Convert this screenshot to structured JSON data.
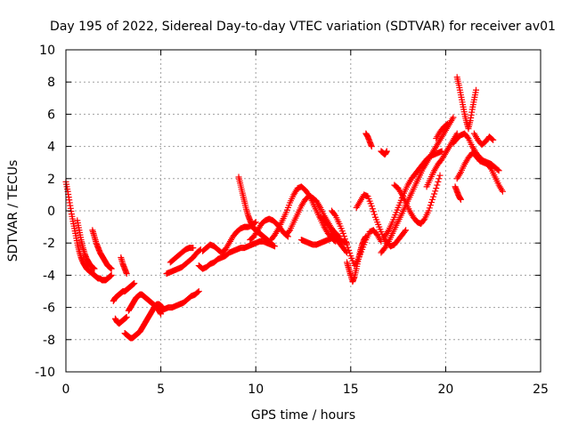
{
  "chart_data": {
    "type": "scatter",
    "title": "Day 195 of 2022, Sidereal Day-to-day VTEC variation (SDTVAR) for receiver av01",
    "xlabel": "GPS time / hours",
    "ylabel": "SDTVAR / TECUs",
    "xlim": [
      0,
      25
    ],
    "ylim": [
      -10,
      10
    ],
    "xticks": [
      0,
      5,
      10,
      15,
      20,
      25
    ],
    "yticks": [
      -10,
      -8,
      -6,
      -4,
      -2,
      0,
      2,
      4,
      6,
      8,
      10
    ],
    "grid": true,
    "marker": "+",
    "color": "#ff0000",
    "series": [
      {
        "name": "seg1",
        "x": [
          0.0,
          0.1,
          0.2,
          0.3,
          0.4,
          0.5,
          0.6,
          0.7,
          0.8,
          0.9,
          1.0,
          1.1,
          1.2,
          1.3,
          1.4,
          1.5,
          1.6,
          1.7,
          1.8,
          1.9,
          2.0,
          2.1,
          2.2,
          2.3,
          2.4
        ],
        "y": [
          1.8,
          1.2,
          0.5,
          -0.2,
          -0.8,
          -1.4,
          -2.0,
          -2.5,
          -2.9,
          -3.2,
          -3.4,
          -3.6,
          -3.7,
          -3.8,
          -3.9,
          -4.0,
          -4.1,
          -4.2,
          -4.2,
          -4.3,
          -4.3,
          -4.3,
          -4.2,
          -4.1,
          -4.0
        ]
      },
      {
        "name": "seg2",
        "x": [
          0.6,
          0.7,
          0.8,
          0.9,
          1.0,
          1.1,
          1.2,
          1.3,
          1.4,
          1.5
        ],
        "y": [
          -0.6,
          -1.2,
          -1.8,
          -2.3,
          -2.7,
          -3.0,
          -3.2,
          -3.4,
          -3.5,
          -3.6
        ]
      },
      {
        "name": "seg3",
        "x": [
          1.4,
          1.5,
          1.6,
          1.7,
          1.8,
          1.9,
          2.0,
          2.1,
          2.2,
          2.3,
          2.4
        ],
        "y": [
          -1.2,
          -1.6,
          -2.0,
          -2.3,
          -2.6,
          -2.8,
          -3.0,
          -3.2,
          -3.4,
          -3.5,
          -3.6
        ]
      },
      {
        "name": "seg4",
        "x": [
          2.6,
          2.7,
          2.8,
          2.9,
          3.0,
          3.1,
          3.2
        ],
        "y": [
          -6.7,
          -6.9,
          -7.0,
          -6.9,
          -6.8,
          -6.7,
          -6.6
        ]
      },
      {
        "name": "seg5",
        "x": [
          2.9,
          3.0,
          3.1,
          3.2
        ],
        "y": [
          -2.9,
          -3.3,
          -3.6,
          -3.9
        ]
      },
      {
        "name": "seg6",
        "x": [
          3.1,
          3.2,
          3.3,
          3.4,
          3.5,
          3.6,
          3.7,
          3.8,
          3.9,
          4.0,
          4.1,
          4.2,
          4.3,
          4.4,
          4.5,
          4.6,
          4.7,
          4.8,
          4.9,
          5.0,
          5.1
        ],
        "y": [
          -7.6,
          -7.7,
          -7.8,
          -7.9,
          -7.9,
          -7.8,
          -7.7,
          -7.6,
          -7.5,
          -7.3,
          -7.1,
          -6.9,
          -6.7,
          -6.5,
          -6.3,
          -6.1,
          -5.9,
          -5.8,
          -5.8,
          -5.9,
          -6.0
        ]
      },
      {
        "name": "seg7",
        "x": [
          2.5,
          2.6,
          2.7,
          2.8,
          2.9,
          3.0,
          3.1,
          3.2,
          3.3,
          3.4,
          3.5,
          3.6
        ],
        "y": [
          -5.6,
          -5.4,
          -5.3,
          -5.2,
          -5.1,
          -5.0,
          -5.0,
          -4.9,
          -4.8,
          -4.7,
          -4.6,
          -4.5
        ]
      },
      {
        "name": "seg8",
        "x": [
          3.3,
          3.4,
          3.5,
          3.6,
          3.7,
          3.8,
          3.9,
          4.0,
          4.1,
          4.2,
          4.3,
          4.4,
          4.5,
          4.6,
          4.7,
          4.8,
          4.9,
          5.0
        ],
        "y": [
          -6.2,
          -6.0,
          -5.8,
          -5.6,
          -5.4,
          -5.3,
          -5.2,
          -5.2,
          -5.3,
          -5.4,
          -5.5,
          -5.6,
          -5.7,
          -5.8,
          -5.9,
          -6.0,
          -6.2,
          -6.4
        ]
      },
      {
        "name": "seg9",
        "x": [
          5.0,
          5.2,
          5.4,
          5.6,
          5.8,
          6.0,
          6.2,
          6.4,
          6.6,
          6.8,
          7.0
        ],
        "y": [
          -6.2,
          -6.1,
          -6.0,
          -6.0,
          -5.9,
          -5.8,
          -5.7,
          -5.5,
          -5.3,
          -5.2,
          -5.0
        ]
      },
      {
        "name": "seg10",
        "x": [
          5.3,
          5.5,
          5.7,
          5.9,
          6.1,
          6.3,
          6.5,
          6.7,
          6.9,
          7.1
        ],
        "y": [
          -3.9,
          -3.8,
          -3.7,
          -3.6,
          -3.5,
          -3.3,
          -3.1,
          -2.9,
          -2.6,
          -2.4
        ]
      },
      {
        "name": "seg11",
        "x": [
          5.5,
          5.7,
          5.9,
          6.1,
          6.3,
          6.5,
          6.7
        ],
        "y": [
          -3.2,
          -3.0,
          -2.8,
          -2.6,
          -2.4,
          -2.3,
          -2.3
        ]
      },
      {
        "name": "seg12",
        "x": [
          7.0,
          7.2,
          7.4,
          7.6,
          7.8,
          8.0,
          8.2,
          8.4,
          8.6,
          8.8,
          9.0,
          9.2,
          9.4,
          9.6,
          9.8,
          10.0,
          10.2,
          10.4,
          10.6,
          10.8,
          11.0
        ],
        "y": [
          -3.4,
          -3.6,
          -3.5,
          -3.3,
          -3.2,
          -3.0,
          -2.9,
          -2.8,
          -2.6,
          -2.5,
          -2.4,
          -2.3,
          -2.3,
          -2.2,
          -2.1,
          -2.0,
          -1.9,
          -1.9,
          -2.0,
          -2.1,
          -2.2
        ]
      },
      {
        "name": "seg13",
        "x": [
          7.2,
          7.4,
          7.6,
          7.8,
          8.0,
          8.2,
          8.4,
          8.6,
          8.8,
          9.0,
          9.2,
          9.4,
          9.6,
          9.8,
          10.0
        ],
        "y": [
          -2.5,
          -2.3,
          -2.1,
          -2.2,
          -2.4,
          -2.6,
          -2.4,
          -2.0,
          -1.6,
          -1.3,
          -1.1,
          -1.0,
          -1.0,
          -0.9,
          -0.7
        ]
      },
      {
        "name": "seg14",
        "x": [
          9.1,
          9.2,
          9.3,
          9.4,
          9.5,
          9.6,
          9.7,
          9.8,
          9.9,
          10.0,
          10.1,
          10.2,
          10.3,
          10.4,
          10.5,
          10.6,
          10.7,
          10.8
        ],
        "y": [
          2.1,
          1.6,
          1.1,
          0.6,
          0.1,
          -0.3,
          -0.6,
          -0.9,
          -1.1,
          -1.2,
          -1.3,
          -1.4,
          -1.5,
          -1.6,
          -1.7,
          -1.8,
          -1.9,
          -2.0
        ]
      },
      {
        "name": "seg15",
        "x": [
          9.7,
          9.9,
          10.1,
          10.3,
          10.5,
          10.7,
          10.9,
          11.1,
          11.3,
          11.5,
          11.7
        ],
        "y": [
          -1.8,
          -1.6,
          -1.2,
          -0.8,
          -0.6,
          -0.5,
          -0.6,
          -0.8,
          -1.1,
          -1.4,
          -1.6
        ]
      },
      {
        "name": "seg16",
        "x": [
          10.8,
          11.0,
          11.2,
          11.4,
          11.6,
          11.8,
          12.0,
          12.2,
          12.4,
          12.6,
          12.8,
          13.0,
          13.2,
          13.4,
          13.6,
          13.8,
          14.0,
          14.2
        ],
        "y": [
          -1.8,
          -1.5,
          -1.1,
          -0.6,
          -0.1,
          0.5,
          1.0,
          1.4,
          1.5,
          1.3,
          1.0,
          0.5,
          0.0,
          -0.5,
          -1.0,
          -1.4,
          -1.7,
          -1.9
        ]
      },
      {
        "name": "seg17",
        "x": [
          11.6,
          11.8,
          12.0,
          12.2,
          12.4,
          12.6,
          12.8,
          13.0,
          13.2,
          13.4,
          13.6,
          13.8,
          14.0,
          14.2,
          14.4
        ],
        "y": [
          -1.5,
          -1.2,
          -0.7,
          -0.2,
          0.3,
          0.7,
          0.9,
          0.8,
          0.6,
          0.2,
          -0.3,
          -0.7,
          -1.1,
          -1.4,
          -1.6
        ]
      },
      {
        "name": "seg18",
        "x": [
          12.4,
          12.6,
          12.8,
          13.0,
          13.2,
          13.4,
          13.6,
          13.8,
          14.0,
          14.2,
          14.4,
          14.6,
          14.8
        ],
        "y": [
          -1.8,
          -1.9,
          -2.0,
          -2.1,
          -2.1,
          -2.0,
          -1.9,
          -1.8,
          -1.7,
          -1.7,
          -1.8,
          -1.9,
          -2.0
        ]
      },
      {
        "name": "seg19",
        "x": [
          13.4,
          13.6,
          13.8,
          14.0,
          14.2,
          14.4,
          14.6,
          14.8
        ],
        "y": [
          -0.4,
          -0.6,
          -0.9,
          -1.3,
          -1.7,
          -2.0,
          -2.3,
          -2.6
        ]
      },
      {
        "name": "seg20",
        "x": [
          14.0,
          14.2,
          14.4,
          14.6,
          14.8,
          15.0,
          15.2,
          15.4,
          15.6,
          15.8,
          16.0,
          16.2,
          16.4,
          16.6
        ],
        "y": [
          0.0,
          -0.3,
          -0.8,
          -1.4,
          -2.1,
          -2.8,
          -3.4,
          -3.0,
          -2.4,
          -1.8,
          -1.3,
          -1.2,
          -1.5,
          -1.9
        ]
      },
      {
        "name": "seg21",
        "x": [
          14.8,
          14.9,
          15.0,
          15.1,
          15.2,
          15.3,
          15.4,
          15.5,
          15.6,
          15.7,
          15.8
        ],
        "y": [
          -3.2,
          -3.6,
          -4.0,
          -4.4,
          -4.1,
          -3.6,
          -3.0,
          -2.5,
          -2.1,
          -1.8,
          -1.6
        ]
      },
      {
        "name": "seg22",
        "x": [
          15.3,
          15.5,
          15.7,
          15.9,
          16.1,
          16.3,
          16.5,
          16.7,
          16.9,
          17.1,
          17.3,
          17.5,
          17.7,
          17.9
        ],
        "y": [
          0.2,
          0.6,
          1.0,
          0.9,
          0.3,
          -0.4,
          -1.0,
          -1.6,
          -2.0,
          -2.2,
          -2.1,
          -1.8,
          -1.5,
          -1.2
        ]
      },
      {
        "name": "seg23",
        "x": [
          15.8,
          15.9,
          16.0,
          16.1
        ],
        "y": [
          4.8,
          4.6,
          4.3,
          4.0
        ]
      },
      {
        "name": "seg24",
        "x": [
          16.6,
          16.7,
          16.8,
          16.9
        ],
        "y": [
          3.7,
          3.6,
          3.5,
          3.7
        ]
      },
      {
        "name": "seg25",
        "x": [
          16.6,
          16.8,
          17.0,
          17.2,
          17.4,
          17.6,
          17.8,
          18.0,
          18.2,
          18.4,
          18.6,
          18.8,
          19.0,
          19.2,
          19.4,
          19.6,
          19.8,
          20.0,
          20.2,
          20.4
        ],
        "y": [
          -2.6,
          -2.3,
          -1.9,
          -1.4,
          -0.9,
          -0.4,
          0.1,
          0.6,
          1.1,
          1.6,
          2.1,
          2.6,
          3.0,
          3.4,
          3.8,
          4.2,
          4.6,
          5.0,
          5.4,
          5.8
        ]
      },
      {
        "name": "seg26",
        "x": [
          16.8,
          17.0,
          17.2,
          17.4,
          17.6,
          17.8,
          18.0,
          18.2,
          18.4,
          18.6,
          18.8,
          19.0,
          19.2,
          19.4,
          19.6,
          19.8
        ],
        "y": [
          -1.6,
          -1.2,
          -0.7,
          -0.1,
          0.5,
          1.1,
          1.6,
          2.0,
          2.3,
          2.6,
          2.9,
          3.2,
          3.4,
          3.5,
          3.6,
          3.7
        ]
      },
      {
        "name": "seg27",
        "x": [
          17.3,
          17.5,
          17.7,
          17.9,
          18.1,
          18.3,
          18.5,
          18.7,
          18.9,
          19.1,
          19.3,
          19.5,
          19.7
        ],
        "y": [
          1.6,
          1.4,
          1.0,
          0.5,
          0.0,
          -0.4,
          -0.7,
          -0.8,
          -0.5,
          0.0,
          0.7,
          1.4,
          2.2
        ]
      },
      {
        "name": "seg28",
        "x": [
          19.0,
          19.2,
          19.4,
          19.6,
          19.8,
          20.0,
          20.2,
          20.4,
          20.6
        ],
        "y": [
          1.5,
          2.0,
          2.5,
          2.9,
          3.2,
          3.6,
          4.0,
          4.4,
          4.8
        ]
      },
      {
        "name": "seg29",
        "x": [
          19.5,
          19.7,
          19.9,
          20.1
        ],
        "y": [
          4.5,
          4.9,
          5.2,
          5.4
        ]
      },
      {
        "name": "seg30",
        "x": [
          20.6,
          20.7,
          20.8,
          20.9,
          21.0,
          21.1,
          21.2,
          21.3,
          21.4,
          21.5,
          21.6
        ],
        "y": [
          8.3,
          7.8,
          7.2,
          6.6,
          6.0,
          5.5,
          5.1,
          5.6,
          6.3,
          6.9,
          7.5
        ]
      },
      {
        "name": "seg31",
        "x": [
          20.4,
          20.6,
          20.8,
          21.0,
          21.2,
          21.4,
          21.6,
          21.8,
          22.0,
          22.2,
          22.4,
          22.6,
          22.8
        ],
        "y": [
          4.2,
          4.5,
          4.7,
          4.8,
          4.5,
          4.0,
          3.6,
          3.3,
          3.1,
          3.0,
          2.9,
          2.7,
          2.5
        ]
      },
      {
        "name": "seg32",
        "x": [
          20.6,
          20.8,
          21.0,
          21.2,
          21.4,
          21.6,
          21.8,
          22.0,
          22.2,
          22.4,
          22.6,
          22.8,
          23.0
        ],
        "y": [
          2.0,
          2.4,
          2.9,
          3.3,
          3.6,
          3.4,
          3.1,
          3.0,
          2.9,
          2.6,
          2.1,
          1.6,
          1.2
        ]
      },
      {
        "name": "seg33",
        "x": [
          21.5,
          21.7,
          21.9,
          22.1,
          22.3,
          22.5
        ],
        "y": [
          4.8,
          4.4,
          4.1,
          4.3,
          4.6,
          4.4
        ]
      },
      {
        "name": "seg34",
        "x": [
          20.5,
          20.6,
          20.7,
          20.8
        ],
        "y": [
          1.5,
          1.2,
          0.9,
          0.7
        ]
      }
    ]
  }
}
